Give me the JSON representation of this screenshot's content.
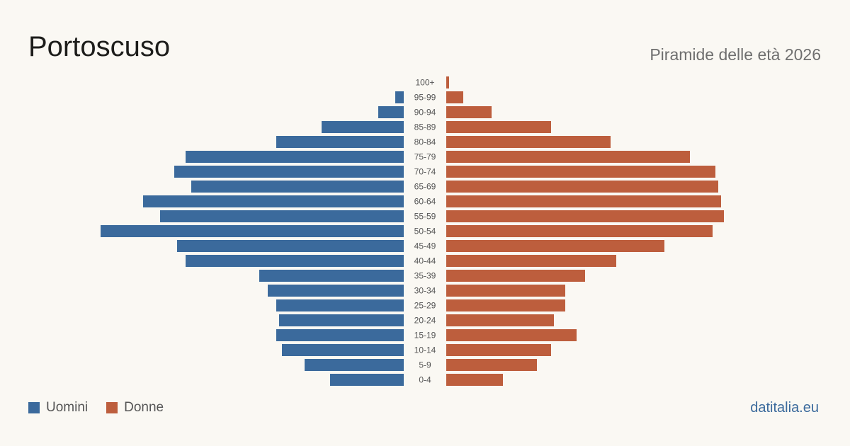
{
  "header": {
    "title": "Portoscuso",
    "subtitle": "Piramide delle età 2026"
  },
  "legend": [
    {
      "label": "Uomini",
      "color": "#3b6a9c"
    },
    {
      "label": "Donne",
      "color": "#bd5e3d"
    }
  ],
  "footer": {
    "source": "datitalia.eu",
    "source_color": "#3b6a9c"
  },
  "chart_data": {
    "type": "bar",
    "orientation": "horizontal-pyramid",
    "categories": [
      "100+",
      "95-99",
      "90-94",
      "85-89",
      "80-84",
      "75-79",
      "70-74",
      "65-69",
      "60-64",
      "55-59",
      "50-54",
      "45-49",
      "40-44",
      "35-39",
      "30-34",
      "25-29",
      "20-24",
      "15-19",
      "10-14",
      "5-9",
      "0-4"
    ],
    "series": [
      {
        "name": "Uomini",
        "color": "#3b6a9c",
        "values": [
          0,
          3,
          9,
          29,
          45,
          77,
          81,
          75,
          92,
          86,
          107,
          80,
          77,
          51,
          48,
          45,
          44,
          45,
          43,
          35,
          26
        ]
      },
      {
        "name": "Donne",
        "color": "#bd5e3d",
        "values": [
          1,
          6,
          16,
          37,
          58,
          86,
          95,
          96,
          97,
          98,
          94,
          77,
          60,
          49,
          42,
          42,
          38,
          46,
          37,
          32,
          20
        ]
      }
    ],
    "xlim": [
      0,
      110
    ],
    "grid": false,
    "legend_position": "bottom-left"
  }
}
